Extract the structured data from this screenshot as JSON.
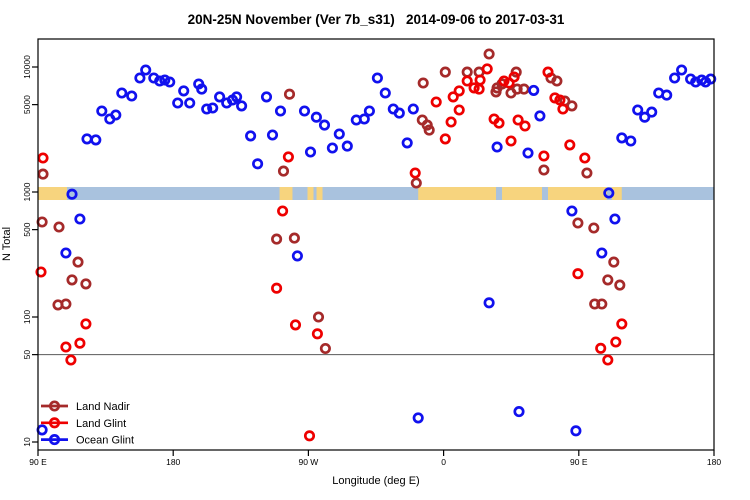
{
  "title": "20N-25N November (Ver 7b_s31)   2014-09-06 to 2017-03-31",
  "axes": {
    "x": {
      "label": "Longitude (deg E)",
      "range_deg": [
        0,
        450
      ],
      "note": "0 = 90E at left edge; axis runs 90E, 180, 90W, 0, 90E, 180",
      "ticks": [
        {
          "pos": 0,
          "label": "90 E"
        },
        {
          "pos": 90,
          "label": "180"
        },
        {
          "pos": 180,
          "label": "90 W"
        },
        {
          "pos": 270,
          "label": "0"
        },
        {
          "pos": 360,
          "label": "90 E"
        },
        {
          "pos": 450,
          "label": "180"
        }
      ]
    },
    "y": {
      "label": "N Total",
      "scale": "log",
      "range": [
        8.6,
        16700
      ],
      "ticks": [
        {
          "value": 10000,
          "label": "10000"
        },
        {
          "value": 5000,
          "label": "5000"
        },
        {
          "value": 1000,
          "label": "1000"
        },
        {
          "value": 500,
          "label": "500"
        },
        {
          "value": 100,
          "label": "100"
        },
        {
          "value": 50,
          "label": "50"
        },
        {
          "value": 10,
          "label": "10"
        }
      ],
      "reference_line_value": 50
    }
  },
  "colors": {
    "land_nadir": "#a52a2a",
    "land_glint": "#ee0000",
    "ocean_glint": "#1111ee",
    "ocean_band": "#a9c2de",
    "land_band": "#f7d47e",
    "grid_line": "#5a5a5a",
    "frame": "#000000"
  },
  "map_band": {
    "description": "land/ocean strip for 20N-25N drawn across the plot at N = 1000",
    "center_value": 1000,
    "land_segments_deg": [
      [
        0,
        19.3
      ],
      [
        160.8,
        169.4
      ],
      [
        179.4,
        183.4
      ],
      [
        185.4,
        189.4
      ],
      [
        253.1,
        304.9
      ],
      [
        308.9,
        335.5
      ],
      [
        339.5,
        378.7
      ],
      [
        382.0,
        388.6
      ]
    ]
  },
  "legend": {
    "items": [
      {
        "label": "Land Nadir",
        "color": "#a52a2a"
      },
      {
        "label": "Land Glint",
        "color": "#ee0000"
      },
      {
        "label": "Ocean Glint",
        "color": "#1111ee"
      }
    ]
  },
  "chart_data": {
    "type": "scatter",
    "title": "20N-25N November (Ver 7b_s31)   2014-09-06 to 2017-03-31",
    "xlabel": "Longitude (deg E)",
    "ylabel": "N Total",
    "x_unit": "degrees east of 90E (axis 0-450 wraps 90E to 180)",
    "ylim": [
      8.6,
      16700
    ],
    "series": [
      {
        "name": "Land Nadir",
        "color": "#a52a2a",
        "points": [
          [
            2.7,
            575
          ],
          [
            3.3,
            1390
          ],
          [
            13.3,
            125
          ],
          [
            14,
            525
          ],
          [
            18.6,
            127
          ],
          [
            22.6,
            198
          ],
          [
            26.6,
            275
          ],
          [
            31.9,
            184
          ],
          [
            158.8,
            420
          ],
          [
            163.4,
            1470
          ],
          [
            167.4,
            6060
          ],
          [
            170.7,
            428
          ],
          [
            186.7,
            100
          ],
          [
            191.3,
            56
          ],
          [
            251.8,
            1180
          ],
          [
            255.8,
            3770
          ],
          [
            256.4,
            7450
          ],
          [
            259.1,
            3430
          ],
          [
            260.4,
            3130
          ],
          [
            271.1,
            9100
          ],
          [
            285.7,
            9100
          ],
          [
            293.6,
            9100
          ],
          [
            300.3,
            12700
          ],
          [
            304.9,
            6320
          ],
          [
            305.6,
            6810
          ],
          [
            308.9,
            7320
          ],
          [
            314.9,
            6190
          ],
          [
            318.3,
            9100
          ],
          [
            318.9,
            6660
          ],
          [
            323.5,
            6660
          ],
          [
            336.8,
            1500
          ],
          [
            341.5,
            8170
          ],
          [
            345.4,
            7730
          ],
          [
            350.7,
            5350
          ],
          [
            355.4,
            4880
          ],
          [
            359.4,
            565
          ],
          [
            365.4,
            1420
          ],
          [
            370,
            515
          ],
          [
            370.6,
            127
          ],
          [
            375.3,
            127
          ],
          [
            379.3,
            198
          ],
          [
            383.3,
            275
          ],
          [
            387.3,
            180
          ]
        ]
      },
      {
        "name": "Land Glint",
        "color": "#ee0000",
        "points": [
          [
            2,
            229
          ],
          [
            3.3,
            1870
          ],
          [
            18.6,
            57.5
          ],
          [
            21.9,
            45.3
          ],
          [
            27.9,
            61.7
          ],
          [
            31.9,
            88
          ],
          [
            158.8,
            170
          ],
          [
            162.8,
            705
          ],
          [
            166.7,
            1910
          ],
          [
            171.4,
            86.5
          ],
          [
            180.7,
            11.2
          ],
          [
            186,
            73.4
          ],
          [
            251.1,
            1420
          ],
          [
            265.1,
            5250
          ],
          [
            271.1,
            2660
          ],
          [
            275,
            3630
          ],
          [
            276.4,
            5760
          ],
          [
            280.4,
            6440
          ],
          [
            280.4,
            4530
          ],
          [
            285.7,
            7730
          ],
          [
            290.3,
            6810
          ],
          [
            293.6,
            6660
          ],
          [
            294.3,
            7870
          ],
          [
            299,
            9650
          ],
          [
            303.6,
            3840
          ],
          [
            306.9,
            3560
          ],
          [
            310.2,
            7730
          ],
          [
            313.6,
            7450
          ],
          [
            314.9,
            2560
          ],
          [
            316.9,
            8310
          ],
          [
            319.6,
            3770
          ],
          [
            324.2,
            3370
          ],
          [
            336.8,
            1940
          ],
          [
            339.5,
            9100
          ],
          [
            344.1,
            5660
          ],
          [
            347.4,
            5450
          ],
          [
            349.4,
            4610
          ],
          [
            354,
            2380
          ],
          [
            359.4,
            222
          ],
          [
            364,
            1870
          ],
          [
            374.6,
            56.2
          ],
          [
            379.3,
            45.3
          ],
          [
            384.6,
            63.1
          ],
          [
            388.6,
            88
          ]
        ]
      },
      {
        "name": "Ocean Glint",
        "color": "#1111ee",
        "points": [
          [
            2.7,
            12.5
          ],
          [
            18.6,
            325
          ],
          [
            22.6,
            960
          ],
          [
            27.9,
            608
          ],
          [
            32.6,
            2660
          ],
          [
            38.5,
            2610
          ],
          [
            42.5,
            4450
          ],
          [
            47.8,
            3840
          ],
          [
            51.8,
            4130
          ],
          [
            55.8,
            6190
          ],
          [
            62.4,
            5860
          ],
          [
            67.8,
            8170
          ],
          [
            71.7,
            9460
          ],
          [
            77.1,
            8170
          ],
          [
            81,
            7730
          ],
          [
            84.4,
            7870
          ],
          [
            87.7,
            7590
          ],
          [
            93,
            5150
          ],
          [
            97,
            6440
          ],
          [
            101,
            5150
          ],
          [
            107,
            7310
          ],
          [
            109,
            6660
          ],
          [
            112.3,
            4610
          ],
          [
            116.3,
            4700
          ],
          [
            120.9,
            5760
          ],
          [
            125.6,
            5150
          ],
          [
            129.5,
            5450
          ],
          [
            132.2,
            5760
          ],
          [
            135.5,
            4880
          ],
          [
            141.5,
            2810
          ],
          [
            146.2,
            1680
          ],
          [
            152.1,
            5760
          ],
          [
            156.1,
            2860
          ],
          [
            161.4,
            4450
          ],
          [
            172.7,
            308
          ],
          [
            177.4,
            4450
          ],
          [
            181.4,
            2090
          ],
          [
            185.3,
            3970
          ],
          [
            190.7,
            3430
          ],
          [
            196,
            2250
          ],
          [
            200.6,
            2910
          ],
          [
            205.9,
            2330
          ],
          [
            211.9,
            3770
          ],
          [
            217.2,
            3840
          ],
          [
            220.6,
            4450
          ],
          [
            225.9,
            8170
          ],
          [
            231.2,
            6190
          ],
          [
            236.5,
            4610
          ],
          [
            240.5,
            4280
          ],
          [
            245.8,
            2470
          ],
          [
            249.8,
            4610
          ],
          [
            253.1,
            15.6
          ],
          [
            300.3,
            130
          ],
          [
            305.6,
            2290
          ],
          [
            320.2,
            17.5
          ],
          [
            326.2,
            2050
          ],
          [
            330,
            6500
          ],
          [
            334.1,
            4060
          ],
          [
            355.4,
            705
          ],
          [
            358.1,
            12.3
          ],
          [
            375.3,
            325
          ],
          [
            380,
            982
          ],
          [
            384,
            608
          ],
          [
            388.6,
            2710
          ],
          [
            394.6,
            2560
          ],
          [
            399.2,
            4530
          ],
          [
            403.9,
            3970
          ],
          [
            408.5,
            4360
          ],
          [
            413.2,
            6190
          ],
          [
            418.5,
            5960
          ],
          [
            423.8,
            8170
          ],
          [
            428.4,
            9460
          ],
          [
            434.4,
            8020
          ],
          [
            437.8,
            7590
          ],
          [
            441.8,
            7870
          ],
          [
            444.4,
            7590
          ],
          [
            447.8,
            8020
          ]
        ]
      }
    ]
  }
}
